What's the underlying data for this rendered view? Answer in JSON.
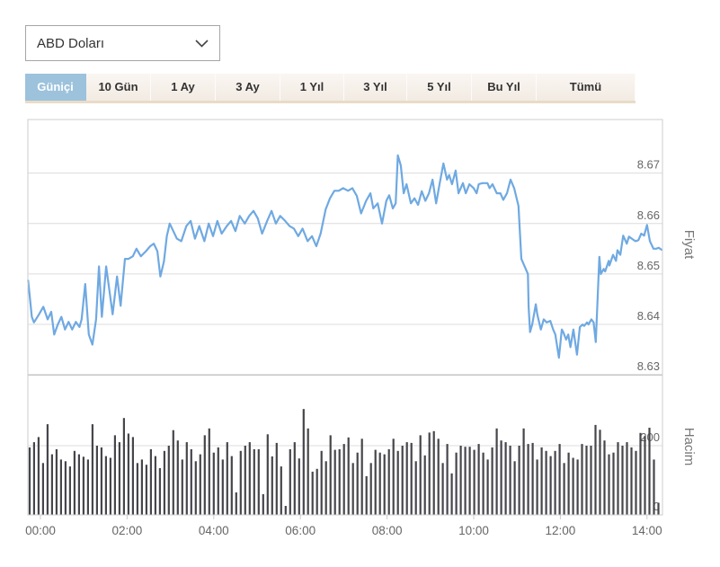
{
  "currency_selector": {
    "value": "ABD Doları"
  },
  "tabs": [
    {
      "label": "Güniçi",
      "active": true
    },
    {
      "label": "10 Gün",
      "active": false
    },
    {
      "label": "1 Ay",
      "active": false
    },
    {
      "label": "3 Ay",
      "active": false
    },
    {
      "label": "1 Yıl",
      "active": false
    },
    {
      "label": "3 Yıl",
      "active": false
    },
    {
      "label": "5 Yıl",
      "active": false
    },
    {
      "label": "Bu Yıl",
      "active": false
    },
    {
      "label": "Tümü",
      "active": false
    }
  ],
  "chart_data": {
    "type": "line",
    "title": "",
    "price_axis": {
      "title": "Fiyat",
      "ticks": [
        "8.67",
        "8.66",
        "8.65",
        "8.64",
        "8.63"
      ],
      "min": 8.63,
      "max": 8.681
    },
    "volume_axis": {
      "title": "Hacim",
      "ticks": [
        "200",
        "0"
      ],
      "min": 0,
      "max": 350
    },
    "x_ticks": [
      "00:00",
      "02:00",
      "04:00",
      "06:00",
      "08:00",
      "10:00",
      "12:00",
      "14:00"
    ],
    "line_color": "#6fa9e2",
    "bar_color": "#45454b",
    "price_series": {
      "name": "Fiyat",
      "x_unit": "minutes_from_00:00",
      "points": [
        [
          -17,
          8.6487
        ],
        [
          -12,
          8.6415
        ],
        [
          -9,
          8.6404
        ],
        [
          -2,
          8.642
        ],
        [
          4,
          8.6435
        ],
        [
          10,
          8.641
        ],
        [
          15,
          8.6425
        ],
        [
          19,
          8.638
        ],
        [
          24,
          8.64
        ],
        [
          29,
          8.6415
        ],
        [
          34,
          8.639
        ],
        [
          39,
          8.6405
        ],
        [
          44,
          8.639
        ],
        [
          49,
          8.6405
        ],
        [
          54,
          8.6395
        ],
        [
          57,
          8.641
        ],
        [
          62,
          8.648
        ],
        [
          67,
          8.638
        ],
        [
          72,
          8.636
        ],
        [
          77,
          8.641
        ],
        [
          81,
          8.6515
        ],
        [
          85,
          8.6415
        ],
        [
          91,
          8.6515
        ],
        [
          100,
          8.642
        ],
        [
          106,
          8.6495
        ],
        [
          111,
          8.6437
        ],
        [
          117,
          8.653
        ],
        [
          122,
          8.653
        ],
        [
          128,
          8.6535
        ],
        [
          133,
          8.655
        ],
        [
          139,
          8.6535
        ],
        [
          146,
          8.6545
        ],
        [
          152,
          8.6555
        ],
        [
          157,
          8.656
        ],
        [
          162,
          8.6545
        ],
        [
          166,
          8.6495
        ],
        [
          171,
          8.6525
        ],
        [
          175,
          8.6575
        ],
        [
          179,
          8.66
        ],
        [
          184,
          8.6585
        ],
        [
          189,
          8.657
        ],
        [
          195,
          8.6565
        ],
        [
          202,
          8.6595
        ],
        [
          208,
          8.6605
        ],
        [
          214,
          8.657
        ],
        [
          220,
          8.6595
        ],
        [
          227,
          8.6565
        ],
        [
          233,
          8.66
        ],
        [
          239,
          8.6575
        ],
        [
          245,
          8.6605
        ],
        [
          251,
          8.658
        ],
        [
          258,
          8.6595
        ],
        [
          264,
          8.6605
        ],
        [
          270,
          8.6585
        ],
        [
          276,
          8.6615
        ],
        [
          283,
          8.66
        ],
        [
          289,
          8.6615
        ],
        [
          295,
          8.6625
        ],
        [
          301,
          8.661
        ],
        [
          307,
          8.658
        ],
        [
          314,
          8.6605
        ],
        [
          320,
          8.6625
        ],
        [
          326,
          8.66
        ],
        [
          332,
          8.6615
        ],
        [
          339,
          8.6605
        ],
        [
          345,
          8.6595
        ],
        [
          351,
          8.659
        ],
        [
          357,
          8.6575
        ],
        [
          363,
          8.659
        ],
        [
          370,
          8.6565
        ],
        [
          376,
          8.6575
        ],
        [
          382,
          8.6555
        ],
        [
          388,
          8.658
        ],
        [
          395,
          8.6628
        ],
        [
          401,
          8.665
        ],
        [
          407,
          8.6665
        ],
        [
          413,
          8.6665
        ],
        [
          419,
          8.667
        ],
        [
          426,
          8.6665
        ],
        [
          432,
          8.667
        ],
        [
          438,
          8.6655
        ],
        [
          444,
          8.662
        ],
        [
          451,
          8.6645
        ],
        [
          457,
          8.666
        ],
        [
          461,
          8.663
        ],
        [
          467,
          8.664
        ],
        [
          473,
          8.66
        ],
        [
          479,
          8.6645
        ],
        [
          483,
          8.6656
        ],
        [
          488,
          8.663
        ],
        [
          492,
          8.664
        ],
        [
          495,
          8.6735
        ],
        [
          499,
          8.6715
        ],
        [
          503,
          8.666
        ],
        [
          507,
          8.6678
        ],
        [
          513,
          8.664
        ],
        [
          518,
          8.665
        ],
        [
          523,
          8.6637
        ],
        [
          528,
          8.6664
        ],
        [
          533,
          8.6645
        ],
        [
          538,
          8.666
        ],
        [
          543,
          8.6687
        ],
        [
          548,
          8.664
        ],
        [
          553,
          8.668
        ],
        [
          558,
          8.6719
        ],
        [
          563,
          8.6687
        ],
        [
          566,
          8.6696
        ],
        [
          570,
          8.6678
        ],
        [
          575,
          8.6705
        ],
        [
          579,
          8.666
        ],
        [
          585,
          8.668
        ],
        [
          589,
          8.666
        ],
        [
          594,
          8.6678
        ],
        [
          600,
          8.667
        ],
        [
          604,
          8.666
        ],
        [
          607,
          8.6678
        ],
        [
          612,
          8.668
        ],
        [
          619,
          8.668
        ],
        [
          622,
          8.667
        ],
        [
          626,
          8.6678
        ],
        [
          632,
          8.666
        ],
        [
          637,
          8.666
        ],
        [
          641,
          8.6647
        ],
        [
          646,
          8.666
        ],
        [
          651,
          8.6687
        ],
        [
          656,
          8.667
        ],
        [
          662,
          8.6635
        ],
        [
          666,
          8.653
        ],
        [
          670,
          8.6517
        ],
        [
          675,
          8.65
        ],
        [
          676,
          8.6435
        ],
        [
          678,
          8.6385
        ],
        [
          681,
          8.64
        ],
        [
          686,
          8.644
        ],
        [
          688,
          8.642
        ],
        [
          693,
          8.639
        ],
        [
          697,
          8.641
        ],
        [
          701,
          8.6404
        ],
        [
          706,
          8.6407
        ],
        [
          710,
          8.639
        ],
        [
          713,
          8.638
        ],
        [
          718,
          8.6334
        ],
        [
          722,
          8.639
        ],
        [
          724,
          8.6385
        ],
        [
          728,
          8.637
        ],
        [
          731,
          8.638
        ],
        [
          734,
          8.6355
        ],
        [
          738,
          8.639
        ],
        [
          743,
          8.634
        ],
        [
          747,
          8.6395
        ],
        [
          751,
          8.64
        ],
        [
          753,
          8.6397
        ],
        [
          757,
          8.6404
        ],
        [
          759,
          8.64
        ],
        [
          763,
          8.641
        ],
        [
          766,
          8.6404
        ],
        [
          769,
          8.6365
        ],
        [
          774,
          8.6534
        ],
        [
          776,
          8.65
        ],
        [
          780,
          8.651
        ],
        [
          782,
          8.6505
        ],
        [
          787,
          8.6526
        ],
        [
          788,
          8.6517
        ],
        [
          793,
          8.6538
        ],
        [
          797,
          8.6526
        ],
        [
          799,
          8.6547
        ],
        [
          803,
          8.6538
        ],
        [
          807,
          8.6576
        ],
        [
          812,
          8.656
        ],
        [
          815,
          8.6574
        ],
        [
          819,
          8.657
        ],
        [
          824,
          8.6565
        ],
        [
          828,
          8.6567
        ],
        [
          832,
          8.658
        ],
        [
          836,
          8.6576
        ],
        [
          840,
          8.6597
        ],
        [
          844,
          8.6565
        ],
        [
          849,
          8.655
        ],
        [
          853,
          8.655
        ],
        [
          856,
          8.6552
        ],
        [
          860,
          8.6548
        ]
      ]
    },
    "volume_series": {
      "name": "Hacim",
      "start_min": -15,
      "step_min": 6.22,
      "values": [
        195,
        210,
        225,
        150,
        262,
        175,
        190,
        160,
        155,
        140,
        185,
        175,
        168,
        160,
        262,
        200,
        195,
        170,
        165,
        230,
        210,
        280,
        235,
        225,
        150,
        160,
        145,
        190,
        170,
        135,
        185,
        200,
        245,
        215,
        160,
        210,
        190,
        155,
        175,
        230,
        250,
        180,
        195,
        160,
        210,
        170,
        65,
        185,
        200,
        210,
        190,
        190,
        60,
        233,
        169,
        208,
        140,
        26,
        190,
        210,
        163,
        306,
        250,
        125,
        133,
        185,
        155,
        230,
        188,
        190,
        205,
        224,
        150,
        180,
        220,
        112,
        150,
        188,
        180,
        175,
        190,
        220,
        185,
        200,
        210,
        208,
        155,
        230,
        172,
        238,
        242,
        220,
        150,
        205,
        120,
        180,
        200,
        197,
        197,
        188,
        205,
        180,
        160,
        195,
        250,
        215,
        210,
        200,
        155,
        200,
        250,
        205,
        208,
        160,
        195,
        185,
        170,
        185,
        205,
        150,
        180,
        165,
        160,
        205,
        200,
        200,
        260,
        246,
        215,
        175,
        180,
        210,
        200,
        210,
        195,
        185,
        237,
        228,
        252,
        160,
        35
      ]
    }
  },
  "colors": {
    "tab_active_bg": "#9cc2dc",
    "tab_bar_bg": "#f7f2ed",
    "axis_text": "#666666",
    "grid": "#dcdcdc",
    "plot_border": "#cccccc"
  }
}
